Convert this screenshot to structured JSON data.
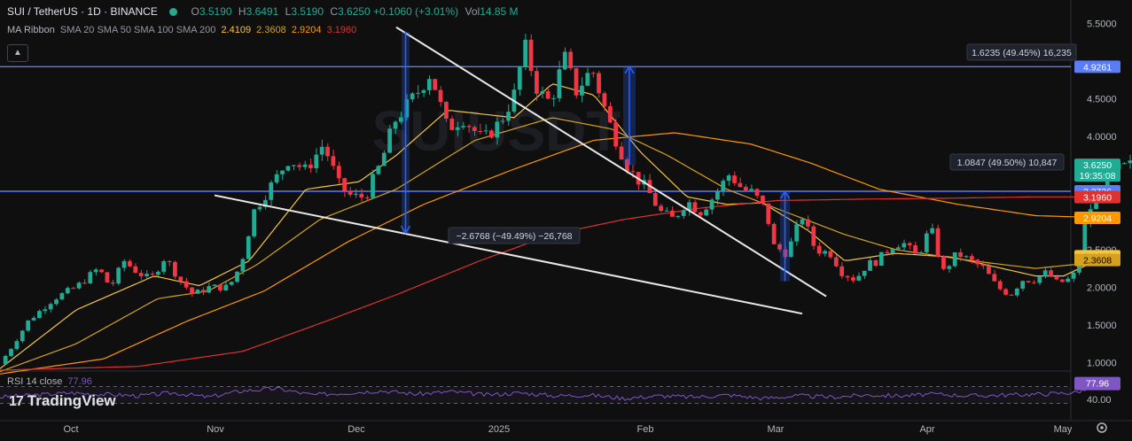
{
  "header": {
    "symbol": "SUI / TetherUS · 1D · BINANCE",
    "open_key": "O",
    "open": "3.5190",
    "high_key": "H",
    "high": "3.6491",
    "low_key": "L",
    "low": "3.5190",
    "close_key": "C",
    "close": "3.6250",
    "change": "+0.1060 (+3.01%)",
    "vol_key": "Vol",
    "vol": "14.85 M"
  },
  "indicator": {
    "name": "MA Ribbon",
    "params": "SMA 20 SMA 50 SMA 100 SMA 200",
    "values": [
      "2.4109",
      "2.3608",
      "2.9204",
      "3.1960"
    ]
  },
  "rsi": {
    "label": "RSI 14 close",
    "value": "77.96",
    "axis_tick": "40.00"
  },
  "logo_text": "TradingView",
  "colors": {
    "up": "#22ab94",
    "down": "#f23645",
    "sma20": "#f5c542",
    "sma50": "#d6a21e",
    "sma100": "#ff9800",
    "sma200": "#e03131",
    "hline": "#5b7cf7",
    "rsi": "#7e57c2"
  },
  "chart_data": {
    "type": "candlestick",
    "x_axis": [
      "Oct",
      "Nov",
      "Dec",
      "2025",
      "Feb",
      "Mar",
      "Apr",
      "May"
    ],
    "y_axis": [
      "5.5000",
      "4.5000",
      "4.0000",
      "2.5000",
      "2.0000",
      "1.5000",
      "1.0000"
    ],
    "ylim": [
      0.9,
      5.6
    ],
    "price_labels": [
      {
        "value": 4.9261,
        "text": "4.9261",
        "color": "#5b7cf7"
      },
      {
        "value": 3.625,
        "text": "3.6250",
        "sub": "19:35:08",
        "color": "#22ab94"
      },
      {
        "value": 3.2736,
        "text": "3.2736",
        "color": "#5b7cf7"
      },
      {
        "value": 3.196,
        "text": "3.1960",
        "color": "#e03131"
      },
      {
        "value": 2.9204,
        "text": "2.9204",
        "color": "#ff9800"
      },
      {
        "value": 2.4109,
        "text": "2.4109",
        "color": "#f5c542"
      },
      {
        "value": 2.3608,
        "text": "2.3608",
        "color": "#d6a21e"
      }
    ],
    "horizontal_lines": [
      4.9261,
      3.2736
    ],
    "annotations": [
      {
        "text": "1.6235 (49.45%) 16,235"
      },
      {
        "text": "1.0847 (49.50%) 10,847"
      },
      {
        "text": "−2.6768 (−49.49%) −26,768"
      }
    ],
    "trendlines": [
      {
        "name": "upper",
        "from": [
          0.447,
          5.45
        ],
        "to": [
          0.932,
          1.88
        ]
      },
      {
        "name": "lower",
        "from": [
          0.242,
          3.22
        ],
        "to": [
          0.905,
          1.65
        ]
      }
    ],
    "measures": [
      {
        "from_x": 0.703,
        "to_x": 0.717,
        "low": 3.62,
        "high": 4.93,
        "arrow": "up"
      },
      {
        "from_x": 0.453,
        "to_x": 0.462,
        "low": 2.72,
        "high": 5.39,
        "arrow": "down"
      },
      {
        "from_x": 0.88,
        "to_x": 0.891,
        "low": 2.08,
        "high": 3.27,
        "arrow": "up"
      }
    ],
    "price_anchors": [
      [
        0.0,
        0.98
      ],
      [
        0.013,
        1.2
      ],
      [
        0.032,
        1.55
      ],
      [
        0.061,
        1.85
      ],
      [
        0.086,
        2.0
      ],
      [
        0.111,
        2.25
      ],
      [
        0.125,
        2.0
      ],
      [
        0.14,
        2.35
      ],
      [
        0.155,
        2.2
      ],
      [
        0.17,
        2.1
      ],
      [
        0.186,
        2.4
      ],
      [
        0.203,
        2.1
      ],
      [
        0.218,
        1.9
      ],
      [
        0.236,
        2.0
      ],
      [
        0.258,
        2.0
      ],
      [
        0.272,
        2.3
      ],
      [
        0.286,
        3.0
      ],
      [
        0.306,
        3.35
      ],
      [
        0.326,
        3.7
      ],
      [
        0.345,
        3.55
      ],
      [
        0.365,
        3.9
      ],
      [
        0.383,
        3.35
      ],
      [
        0.397,
        3.2
      ],
      [
        0.412,
        3.2
      ],
      [
        0.43,
        3.65
      ],
      [
        0.445,
        4.2
      ],
      [
        0.469,
        4.55
      ],
      [
        0.486,
        4.85
      ],
      [
        0.505,
        4.1
      ],
      [
        0.522,
        4.25
      ],
      [
        0.545,
        3.95
      ],
      [
        0.565,
        4.2
      ],
      [
        0.58,
        4.55
      ],
      [
        0.592,
        5.2
      ],
      [
        0.607,
        4.6
      ],
      [
        0.621,
        4.45
      ],
      [
        0.637,
        5.05
      ],
      [
        0.65,
        4.6
      ],
      [
        0.668,
        4.9
      ],
      [
        0.69,
        4.1
      ],
      [
        0.71,
        3.55
      ],
      [
        0.73,
        3.3
      ],
      [
        0.745,
        3.0
      ],
      [
        0.76,
        2.9
      ],
      [
        0.775,
        3.15
      ],
      [
        0.79,
        3.0
      ],
      [
        0.805,
        3.2
      ],
      [
        0.823,
        3.5
      ],
      [
        0.838,
        3.3
      ],
      [
        0.85,
        3.25
      ],
      [
        0.865,
        3.0
      ],
      [
        0.872,
        2.55
      ],
      [
        0.888,
        2.45
      ],
      [
        0.905,
        2.95
      ],
      [
        0.92,
        2.5
      ],
      [
        0.937,
        2.45
      ],
      [
        0.95,
        2.2
      ],
      [
        0.965,
        2.1
      ],
      [
        0.978,
        2.3
      ],
      [
        0.99,
        2.35
      ],
      [
        1.006,
        2.55
      ],
      [
        1.018,
        2.6
      ],
      [
        1.035,
        2.4
      ],
      [
        1.05,
        2.8
      ],
      [
        1.064,
        2.2
      ],
      [
        1.08,
        2.45
      ],
      [
        1.095,
        2.35
      ],
      [
        1.11,
        2.25
      ],
      [
        1.125,
        2.0
      ],
      [
        1.14,
        1.9
      ],
      [
        1.153,
        2.1
      ],
      [
        1.168,
        2.1
      ],
      [
        1.181,
        2.2
      ],
      [
        1.193,
        2.05
      ],
      [
        1.205,
        2.1
      ],
      [
        1.215,
        2.2
      ],
      [
        1.226,
        2.95
      ],
      [
        1.241,
        3.3
      ],
      [
        1.258,
        3.55
      ],
      [
        1.275,
        3.62
      ]
    ],
    "sma_anchors": [
      {
        "name": "SMA 20",
        "points": [
          [
            0,
            0.92
          ],
          [
            0.086,
            1.7
          ],
          [
            0.174,
            2.15
          ],
          [
            0.225,
            2.02
          ],
          [
            0.281,
            2.35
          ],
          [
            0.345,
            3.3
          ],
          [
            0.405,
            3.4
          ],
          [
            0.447,
            3.75
          ],
          [
            0.505,
            4.35
          ],
          [
            0.58,
            4.25
          ],
          [
            0.623,
            4.7
          ],
          [
            0.67,
            4.55
          ],
          [
            0.722,
            3.8
          ],
          [
            0.775,
            3.2
          ],
          [
            0.82,
            3.1
          ],
          [
            0.86,
            3.12
          ],
          [
            0.912,
            2.75
          ],
          [
            0.953,
            2.35
          ],
          [
            1.01,
            2.45
          ],
          [
            1.074,
            2.4
          ],
          [
            1.168,
            2.15
          ],
          [
            1.2,
            2.15
          ],
          [
            1.254,
            2.45
          ]
        ]
      },
      {
        "name": "SMA 50",
        "points": [
          [
            0,
            0.88
          ],
          [
            0.086,
            1.25
          ],
          [
            0.178,
            1.85
          ],
          [
            0.235,
            1.95
          ],
          [
            0.29,
            2.3
          ],
          [
            0.361,
            2.9
          ],
          [
            0.447,
            3.3
          ],
          [
            0.536,
            3.95
          ],
          [
            0.623,
            4.25
          ],
          [
            0.69,
            4.1
          ],
          [
            0.753,
            3.75
          ],
          [
            0.82,
            3.3
          ],
          [
            0.875,
            3.05
          ],
          [
            0.953,
            2.7
          ],
          [
            1.01,
            2.5
          ],
          [
            1.097,
            2.35
          ],
          [
            1.168,
            2.25
          ],
          [
            1.254,
            2.35
          ]
        ]
      },
      {
        "name": "SMA 100",
        "points": [
          [
            0,
            0.85
          ],
          [
            0.117,
            1.05
          ],
          [
            0.211,
            1.55
          ],
          [
            0.298,
            1.95
          ],
          [
            0.392,
            2.6
          ],
          [
            0.478,
            3.1
          ],
          [
            0.576,
            3.55
          ],
          [
            0.67,
            3.95
          ],
          [
            0.761,
            4.05
          ],
          [
            0.847,
            3.9
          ],
          [
            0.914,
            3.65
          ],
          [
            0.992,
            3.3
          ],
          [
            1.081,
            3.1
          ],
          [
            1.168,
            2.95
          ],
          [
            1.254,
            2.92
          ]
        ]
      },
      {
        "name": "SMA 200",
        "points": [
          [
            0,
            0.9
          ],
          [
            0.156,
            0.95
          ],
          [
            0.274,
            1.15
          ],
          [
            0.368,
            1.55
          ],
          [
            0.447,
            1.9
          ],
          [
            0.541,
            2.35
          ],
          [
            0.623,
            2.7
          ],
          [
            0.704,
            2.9
          ],
          [
            0.79,
            3.05
          ],
          [
            0.876,
            3.15
          ],
          [
            0.977,
            3.17
          ],
          [
            1.065,
            3.18
          ],
          [
            1.168,
            3.2
          ],
          [
            1.254,
            3.2
          ]
        ]
      }
    ],
    "rsi_anchors": [
      [
        0,
        45
      ],
      [
        0.079,
        55
      ],
      [
        0.157,
        48
      ],
      [
        0.196,
        55
      ],
      [
        0.235,
        45
      ],
      [
        0.274,
        60
      ],
      [
        0.313,
        65
      ],
      [
        0.352,
        50
      ],
      [
        0.391,
        55
      ],
      [
        0.43,
        60
      ],
      [
        0.47,
        52
      ],
      [
        0.509,
        58
      ],
      [
        0.548,
        50
      ],
      [
        0.587,
        55
      ],
      [
        0.626,
        48
      ],
      [
        0.665,
        50
      ],
      [
        0.704,
        42
      ],
      [
        0.743,
        48
      ],
      [
        0.782,
        45
      ],
      [
        0.822,
        50
      ],
      [
        0.861,
        42
      ],
      [
        0.9,
        48
      ],
      [
        0.939,
        45
      ],
      [
        0.978,
        50
      ],
      [
        1.017,
        48
      ],
      [
        1.056,
        52
      ],
      [
        1.095,
        48
      ],
      [
        1.135,
        50
      ],
      [
        1.174,
        52
      ],
      [
        1.213,
        56
      ],
      [
        1.241,
        72
      ],
      [
        1.254,
        78
      ]
    ]
  }
}
